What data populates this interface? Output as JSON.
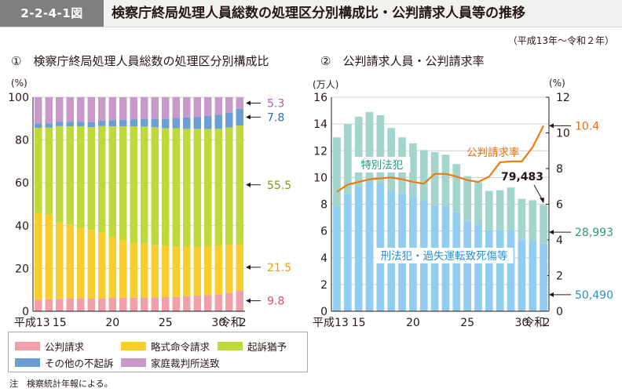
{
  "header": {
    "figure_number": "2-2-4-1図",
    "title": "検察庁終局処理人員総数の処理区分別構成比・公判請求人員等の推移",
    "period": "（平成13年～令和２年）"
  },
  "chart_data": [
    {
      "id": "left",
      "type": "bar",
      "stacked": true,
      "panel_title": "①　検察庁終局処理人員総数の処理区分別構成比",
      "y_unit": "(%)",
      "ylim": [
        0,
        100
      ],
      "y_ticks": [
        0,
        20,
        40,
        60,
        80,
        100
      ],
      "x_tick_labels": [
        {
          "index": 0,
          "label": "平成13"
        },
        {
          "index": 2,
          "label": "15"
        },
        {
          "index": 7,
          "label": "20"
        },
        {
          "index": 12,
          "label": "25"
        },
        {
          "index": 17,
          "label": "30"
        },
        {
          "index": 18,
          "label": "令和"
        },
        {
          "index": 19,
          "label": "2"
        }
      ],
      "categories": [
        "H13",
        "H14",
        "H15",
        "H16",
        "H17",
        "H18",
        "H19",
        "H20",
        "H21",
        "H22",
        "H23",
        "H24",
        "H25",
        "H26",
        "H27",
        "H28",
        "H29",
        "H30",
        "R1",
        "R2"
      ],
      "series": [
        {
          "name": "公判請求",
          "color": "#f0a0a8",
          "values": [
            5.3,
            5.6,
            5.8,
            6.0,
            6.0,
            6.0,
            6.0,
            6.2,
            6.3,
            6.3,
            6.4,
            6.5,
            6.6,
            6.7,
            7.0,
            7.3,
            7.6,
            8.0,
            8.7,
            9.8
          ]
        },
        {
          "name": "略式命令請求",
          "color": "#f8cd2c",
          "values": [
            40.6,
            39.6,
            35.7,
            34.4,
            33.0,
            32.0,
            30.8,
            28.4,
            27.0,
            25.6,
            25.3,
            24.3,
            24.0,
            23.5,
            23.2,
            22.9,
            22.6,
            22.6,
            22.3,
            21.5
          ]
        },
        {
          "name": "起訴猶予",
          "color": "#bfd83a",
          "values": [
            39.8,
            40.6,
            45.0,
            46.0,
            47.4,
            48.0,
            49.7,
            51.8,
            53.1,
            54.5,
            54.6,
            55.2,
            54.9,
            55.3,
            55.0,
            55.0,
            54.9,
            54.6,
            54.9,
            55.5
          ]
        },
        {
          "name": "その他の不起訴",
          "color": "#6a9fd6",
          "values": [
            2.0,
            2.0,
            2.1,
            2.2,
            2.2,
            2.4,
            2.6,
            2.9,
            3.0,
            3.3,
            3.6,
            4.0,
            4.5,
            4.8,
            5.3,
            5.6,
            6.1,
            6.6,
            6.9,
            7.8
          ]
        },
        {
          "name": "家庭裁判所送致",
          "color": "#c79ac9",
          "values": [
            12.3,
            12.2,
            11.4,
            11.4,
            11.4,
            11.6,
            10.9,
            10.7,
            10.6,
            10.3,
            10.1,
            10.0,
            10.0,
            9.7,
            9.5,
            9.2,
            8.8,
            8.2,
            7.2,
            5.3
          ]
        }
      ],
      "end_labels": [
        {
          "series": 4,
          "label": "5.3",
          "color": "#a463a8"
        },
        {
          "series": 3,
          "label": "7.8",
          "color": "#2d6fb5"
        },
        {
          "series": 2,
          "label": "55.5",
          "color": "#7d9a12"
        },
        {
          "series": 1,
          "label": "21.5",
          "color": "#e8a100"
        },
        {
          "series": 0,
          "label": "9.8",
          "color": "#e0505e"
        }
      ]
    },
    {
      "id": "right",
      "type": "bar+line",
      "panel_title": "②　公判請求人員・公判請求率",
      "y_unit_left": "(万人)",
      "y_unit_right": "(%)",
      "ylim_left": [
        0,
        16
      ],
      "y_ticks_left": [
        0,
        2,
        4,
        6,
        8,
        10,
        12,
        14,
        16
      ],
      "ylim_right": [
        0,
        12
      ],
      "y_ticks_right": [
        0,
        2,
        4,
        6,
        8,
        10,
        12
      ],
      "x_tick_labels": [
        {
          "index": 0,
          "label": "平成13"
        },
        {
          "index": 2,
          "label": "15"
        },
        {
          "index": 7,
          "label": "20"
        },
        {
          "index": 12,
          "label": "25"
        },
        {
          "index": 17,
          "label": "30"
        },
        {
          "index": 18,
          "label": "令和"
        },
        {
          "index": 19,
          "label": "2"
        }
      ],
      "categories": [
        "H13",
        "H14",
        "H15",
        "H16",
        "H17",
        "H18",
        "H19",
        "H20",
        "H21",
        "H22",
        "H23",
        "H24",
        "H25",
        "H26",
        "H27",
        "H28",
        "H29",
        "H30",
        "R1",
        "R2"
      ],
      "series": [
        {
          "name": "刑法犯・過失運転致死傷等",
          "color": "#92cdf1",
          "kind": "bar",
          "values": [
            7.85,
            8.75,
            9.35,
            9.85,
            9.55,
            9.0,
            8.8,
            8.6,
            8.3,
            7.95,
            7.85,
            7.4,
            6.75,
            6.5,
            6.05,
            6.05,
            6.0,
            5.35,
            5.25,
            5.049
          ]
        },
        {
          "name": "特別法犯",
          "color": "#a3d5cd",
          "kind": "bar_stack",
          "values": [
            5.15,
            5.25,
            5.2,
            5.05,
            5.1,
            4.7,
            4.2,
            3.95,
            3.75,
            3.95,
            3.85,
            3.6,
            3.35,
            3.15,
            2.95,
            3.0,
            3.25,
            3.05,
            3.05,
            2.8993
          ]
        },
        {
          "name": "公判請求率",
          "color": "#ea7d12",
          "kind": "line",
          "values": [
            6.7,
            7.1,
            7.25,
            7.4,
            7.45,
            7.5,
            7.4,
            7.25,
            7.15,
            7.7,
            7.7,
            7.55,
            7.35,
            7.25,
            7.55,
            8.35,
            8.4,
            8.4,
            9.2,
            10.4
          ]
        }
      ],
      "series_labels": [
        {
          "series": 1,
          "label": "特別法犯",
          "color": "#2a9a7e"
        },
        {
          "series": 0,
          "label": "刑法犯・過失運転致死傷等",
          "color": "#2b8fcf"
        },
        {
          "series": 2,
          "label": "公判請求率",
          "color": "#e07010"
        }
      ],
      "end_labels": {
        "rate": {
          "label": "10.4",
          "color": "#e07010"
        },
        "total": {
          "label": "79,483",
          "color": "#231815"
        },
        "special": {
          "label": "28,993",
          "color": "#2a9a7e"
        },
        "criminal": {
          "label": "50,490",
          "color": "#2b8fcf"
        }
      }
    }
  ],
  "legend": [
    {
      "label": "公判請求",
      "color": "#f0a0a8"
    },
    {
      "label": "略式命令請求",
      "color": "#f8cd2c"
    },
    {
      "label": "起訴猶予",
      "color": "#bfd83a"
    },
    {
      "label": "その他の不起訴",
      "color": "#6a9fd6"
    },
    {
      "label": "家庭裁判所送致",
      "color": "#c79ac9"
    }
  ],
  "note": "注　検察統計年報による。"
}
